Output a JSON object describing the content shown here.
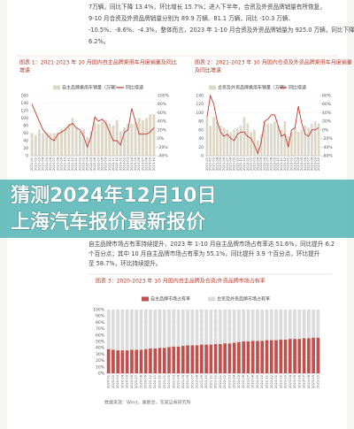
{
  "top_text": [
    "7万辆，同比下降 13.4%，环比增长 15.7%；进入下半年，合资及外资品牌销量有所恢复，",
    "9-10 月合资及外资品牌销量分别为 89.9 万辆、81.1 万辆，同比 -10.3 万辆、",
    "-10.5%、-8.6%、-4.3%，整体而言，2023 年 1-10 月合资及外资品牌销量为 925.0 万辆，同比下降",
    "6.2%。"
  ],
  "middle_text": [
    "自主品牌市场占有率持续提升，2023 年 1-10 月自主品牌市场占有率达 51.6%，同比提升 6.2",
    "个百分点；其中 10 月自主品牌市场占有率为 55.1%，同比提升 3.9 个百分点，环比提升",
    "至 58.7%，环比持续提升。"
  ],
  "banner": {
    "lines": [
      "猜测2024年12月10日",
      "上海汽车报价最新报价"
    ]
  },
  "source": "数据来源：Wind，乘联会，东吴证券研究所",
  "chart_data": [
    {
      "type": "bar_line",
      "title": [
        "图表 1：2021-2023 年 10 月国内自主品牌乘用车月度销量及同比",
        "增速"
      ],
      "categories": [
        "2021-01",
        "2021-02",
        "2021-03",
        "2021-04",
        "2021-05",
        "2021-06",
        "2021-07",
        "2021-08",
        "2021-09",
        "2021-10",
        "2021-11",
        "2021-12",
        "2022-01",
        "2022-02",
        "2022-03",
        "2022-04",
        "2022-05",
        "2022-06",
        "2022-07",
        "2022-08",
        "2022-09",
        "2022-10",
        "2022-11",
        "2022-12",
        "2023-01",
        "2023-02",
        "2023-03",
        "2023-04",
        "2023-05",
        "2023-06",
        "2023-07",
        "2023-08",
        "2023-09",
        "2023-10"
      ],
      "series": [
        {
          "name": "自主品牌乘用车销量（万辆）",
          "color": "#ddd7c8",
          "values": [
            60,
            55,
            70,
            60,
            62,
            60,
            60,
            62,
            70,
            75,
            85,
            100,
            75,
            65,
            70,
            50,
            65,
            90,
            85,
            90,
            95,
            85,
            80,
            95,
            65,
            75,
            85,
            85,
            90,
            100,
            95,
            100,
            110,
            110
          ]
        },
        {
          "name": "同比增速",
          "color": "#c0392b",
          "axis": "y2",
          "values": [
            80,
            60,
            40,
            20,
            10,
            0,
            -5,
            10,
            15,
            20,
            30,
            35,
            25,
            20,
            5,
            -20,
            5,
            50,
            40,
            45,
            35,
            15,
            -5,
            -5,
            -15,
            15,
            20,
            70,
            40,
            10,
            10,
            10,
            15,
            25
          ]
        }
      ],
      "ylim": [
        0,
        160
      ],
      "yticks": [
        0,
        20,
        40,
        60,
        80,
        100,
        120,
        140,
        160
      ],
      "y2lim": [
        -40,
        100
      ],
      "y2ticks": [
        {
          "value": -40,
          "label": "-40%"
        },
        {
          "value": -20,
          "label": "-20%"
        },
        {
          "value": 0,
          "label": "0%"
        },
        {
          "value": 20,
          "label": "20%"
        },
        {
          "value": 40,
          "label": "40%"
        },
        {
          "value": 60,
          "label": "60%"
        },
        {
          "value": 80,
          "label": "80%"
        },
        {
          "value": 100,
          "label": "100%"
        }
      ],
      "grid": true
    },
    {
      "type": "bar_line",
      "title": [
        "图表 2：2021-2023 年 10 月国内合资及外资品牌乘用车月度销量",
        "及同比增速"
      ],
      "categories": [
        "2021-01",
        "2021-02",
        "2021-03",
        "2021-04",
        "2021-05",
        "2021-06",
        "2021-07",
        "2021-08",
        "2021-09",
        "2021-10",
        "2021-11",
        "2021-12",
        "2022-01",
        "2022-02",
        "2022-03",
        "2022-04",
        "2022-05",
        "2022-06",
        "2022-07",
        "2022-08",
        "2022-09",
        "2022-10",
        "2022-11",
        "2022-12",
        "2023-01",
        "2023-02",
        "2023-03",
        "2023-04",
        "2023-05",
        "2023-06",
        "2023-07",
        "2023-08",
        "2023-09",
        "2023-10"
      ],
      "series": [
        {
          "name": "合资及外资品牌乘用车销量（万辆）",
          "color": "#ddd7c8",
          "values": [
            90,
            70,
            90,
            80,
            70,
            65,
            60,
            55,
            60,
            65,
            70,
            90,
            75,
            55,
            60,
            35,
            50,
            80,
            75,
            75,
            80,
            70,
            60,
            80,
            45,
            55,
            65,
            55,
            60,
            70,
            65,
            75,
            80,
            75
          ]
        },
        {
          "name": "同比增速",
          "color": "#c0392b",
          "axis": "y2",
          "values": [
            30,
            80,
            60,
            20,
            -5,
            -15,
            -10,
            -20,
            -25,
            -10,
            -5,
            -5,
            -15,
            -20,
            -35,
            -55,
            -30,
            20,
            25,
            35,
            35,
            10,
            -15,
            -10,
            -40,
            0,
            5,
            55,
            15,
            -10,
            -15,
            0,
            0,
            5
          ]
        }
      ],
      "ylim": [
        0,
        140
      ],
      "yticks": [
        0,
        20,
        40,
        60,
        80,
        100,
        120,
        140
      ],
      "y2lim": [
        -60,
        80
      ],
      "y2ticks": [
        {
          "value": -60,
          "label": "-60%"
        },
        {
          "value": -40,
          "label": "-40%"
        },
        {
          "value": -20,
          "label": "-20%"
        },
        {
          "value": 0,
          "label": "0%"
        },
        {
          "value": 20,
          "label": "20%"
        },
        {
          "value": 40,
          "label": "40%"
        },
        {
          "value": 60,
          "label": "60%"
        },
        {
          "value": 80,
          "label": "80%"
        }
      ],
      "grid": true
    },
    {
      "type": "stacked_bar",
      "title": [
        "图表 3：2020-2023 年 10 月国内自主品牌及合资/外资品牌市场占有率"
      ],
      "categories": [
        "2020-01",
        "2020-02",
        "2020-03",
        "2020-04",
        "2020-05",
        "2020-06",
        "2020-07",
        "2020-08",
        "2020-09",
        "2020-10",
        "2020-11",
        "2020-12",
        "2021-01",
        "2021-02",
        "2021-03",
        "2021-04",
        "2021-05",
        "2021-06",
        "2021-07",
        "2021-08",
        "2021-09",
        "2021-10",
        "2021-11",
        "2021-12",
        "2022-01",
        "2022-02",
        "2022-03",
        "2022-04",
        "2022-05",
        "2022-06",
        "2022-07",
        "2022-08",
        "2022-09",
        "2022-10",
        "2022-11",
        "2022-12",
        "2023-01",
        "2023-02",
        "2023-03",
        "2023-04",
        "2023-05",
        "2023-06",
        "2023-07",
        "2023-08",
        "2023-09",
        "2023-10"
      ],
      "series": [
        {
          "name": "自主品牌市场占有率",
          "color": "#c0504d",
          "values": [
            38,
            37,
            36,
            36,
            36,
            37,
            37,
            37,
            38,
            39,
            39,
            40,
            40,
            41,
            42,
            42,
            43,
            44,
            44,
            44,
            45,
            45,
            45,
            46,
            46,
            47,
            47,
            48,
            49,
            50,
            50,
            51,
            51,
            51,
            52,
            52,
            52,
            53,
            53,
            54,
            54,
            54,
            55,
            55,
            56,
            56
          ]
        },
        {
          "name": "合资及外资品牌市场占有率",
          "color": "#dcdcdc",
          "values": [
            62,
            63,
            64,
            64,
            64,
            63,
            63,
            63,
            62,
            61,
            61,
            60,
            60,
            59,
            58,
            58,
            57,
            56,
            56,
            56,
            55,
            55,
            55,
            54,
            54,
            53,
            53,
            52,
            51,
            50,
            50,
            49,
            49,
            49,
            48,
            48,
            48,
            47,
            47,
            46,
            46,
            46,
            45,
            45,
            44,
            44
          ]
        }
      ],
      "ylim": [
        0,
        100
      ],
      "yticks": [
        {
          "value": 0,
          "label": "0%"
        },
        {
          "value": 10,
          "label": "10%"
        },
        {
          "value": 20,
          "label": "20%"
        },
        {
          "value": 30,
          "label": "30%"
        },
        {
          "value": 40,
          "label": "40%"
        },
        {
          "value": 50,
          "label": "50%"
        },
        {
          "value": 60,
          "label": "60%"
        },
        {
          "value": 70,
          "label": "70%"
        },
        {
          "value": 80,
          "label": "80%"
        },
        {
          "value": 90,
          "label": "90%"
        },
        {
          "value": 100,
          "label": "100%"
        }
      ],
      "grid": true
    }
  ]
}
